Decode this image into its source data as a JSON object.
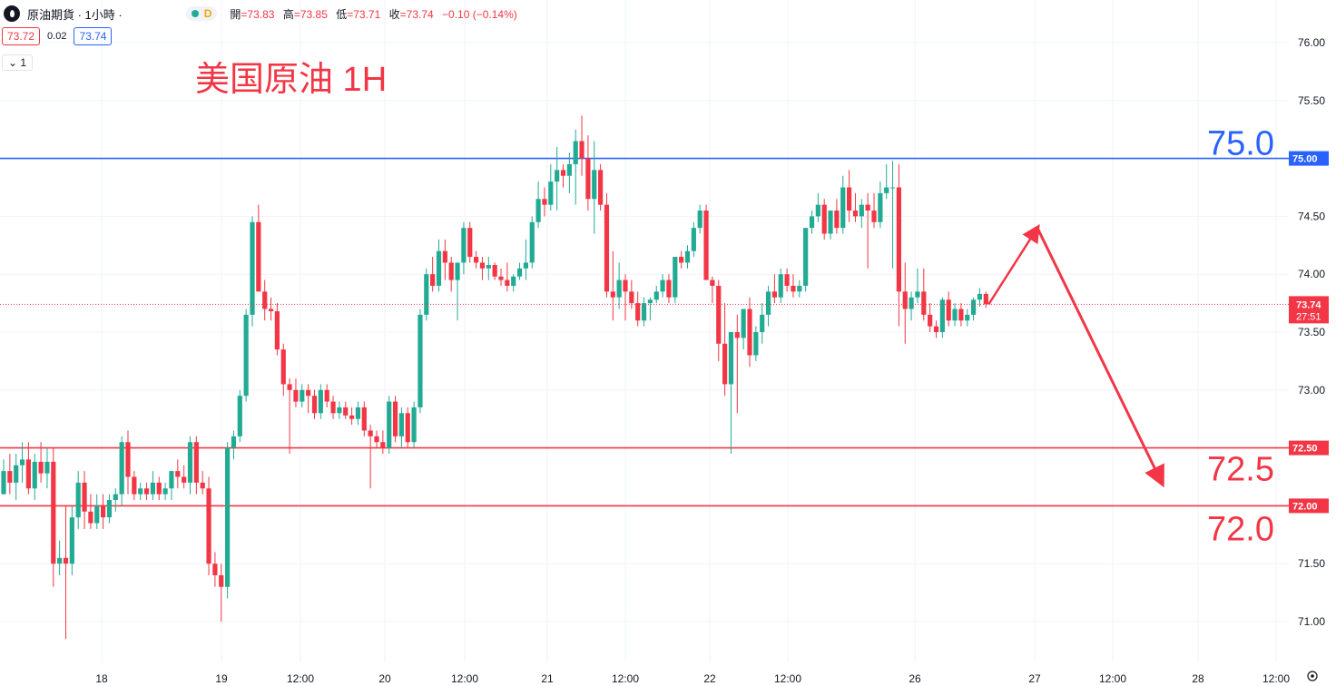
{
  "header": {
    "symbol": "原油期貨 · 1小時 ·",
    "badge": "D",
    "ohlc": [
      {
        "label": "開",
        "value": "=73.83"
      },
      {
        "label": "高",
        "value": "=73.85"
      },
      {
        "label": "低",
        "value": "=73.71"
      },
      {
        "label": "收",
        "value": "=73.74"
      },
      {
        "label": "",
        "value": "−0.10 (−0.14%)"
      }
    ],
    "sell_price": "73.72",
    "spread": "0.02",
    "buy_price": "73.74",
    "indicator_toggle": "1"
  },
  "colors": {
    "up": "#22ab94",
    "down": "#f23645",
    "blue_line": "#2962ff",
    "red_line": "#f23645",
    "annotation": "#f23645"
  },
  "chart_data": {
    "type": "candlestick",
    "title": "美国原油 1H",
    "ylim": [
      70.8,
      76.0
    ],
    "y_ticks": [
      "71.00",
      "71.50",
      "72.00",
      "72.50",
      "73.00",
      "73.50",
      "74.00",
      "74.50",
      "75.00",
      "75.50",
      "76.00"
    ],
    "x_ticks": [
      "18",
      "19",
      "12:00",
      "20",
      "12:00",
      "21",
      "12:00",
      "22",
      "12:00",
      "26",
      "27",
      "12:00",
      "28",
      "12:00"
    ],
    "current_price": {
      "value": 73.74,
      "label": "73.74",
      "countdown": "27:51"
    },
    "horizontal_lines": [
      {
        "price": 75.0,
        "axis_label": "75.00",
        "big_label": "75.0",
        "color": "#2962ff"
      },
      {
        "price": 72.5,
        "axis_label": "72.50",
        "big_label": "72.5",
        "color": "#f23645"
      },
      {
        "price": 72.0,
        "axis_label": "72.00",
        "big_label": "72.0",
        "color": "#f23645"
      }
    ],
    "projection": [
      {
        "x": "26 07:00",
        "y": 73.74
      },
      {
        "x": "27 00:00",
        "y": 74.4
      },
      {
        "x": "28 00:00",
        "y": 72.2
      }
    ],
    "candles": [
      [
        72.1,
        72.4,
        72.1,
        72.3
      ],
      [
        72.3,
        72.45,
        72.1,
        72.2
      ],
      [
        72.2,
        72.45,
        72.05,
        72.35
      ],
      [
        72.35,
        72.55,
        72.2,
        72.4
      ],
      [
        72.4,
        72.55,
        72.1,
        72.15
      ],
      [
        72.15,
        72.45,
        72.05,
        72.38
      ],
      [
        72.38,
        72.55,
        72.2,
        72.28
      ],
      [
        72.28,
        72.5,
        72.15,
        72.38
      ],
      [
        72.38,
        72.5,
        71.3,
        71.5
      ],
      [
        71.5,
        71.7,
        71.4,
        71.55
      ],
      [
        71.55,
        72.0,
        70.85,
        71.5
      ],
      [
        71.5,
        72.0,
        71.4,
        71.9
      ],
      [
        71.9,
        72.3,
        71.8,
        72.2
      ],
      [
        72.2,
        72.3,
        71.8,
        71.95
      ],
      [
        71.95,
        72.1,
        71.8,
        71.85
      ],
      [
        71.85,
        72.1,
        71.8,
        72.0
      ],
      [
        72.0,
        72.1,
        71.8,
        71.9
      ],
      [
        71.9,
        72.1,
        71.85,
        72.05
      ],
      [
        72.05,
        72.15,
        71.95,
        72.1
      ],
      [
        72.1,
        72.6,
        72.0,
        72.55
      ],
      [
        72.55,
        72.65,
        72.1,
        72.25
      ],
      [
        72.25,
        72.3,
        72.05,
        72.1
      ],
      [
        72.1,
        72.2,
        72.05,
        72.15
      ],
      [
        72.15,
        72.2,
        72.05,
        72.1
      ],
      [
        72.1,
        72.3,
        72.05,
        72.2
      ],
      [
        72.2,
        72.25,
        72.05,
        72.1
      ],
      [
        72.1,
        72.2,
        72.05,
        72.15
      ],
      [
        72.15,
        72.3,
        72.05,
        72.3
      ],
      [
        72.3,
        72.4,
        72.15,
        72.25
      ],
      [
        72.25,
        72.35,
        72.15,
        72.2
      ],
      [
        72.2,
        72.6,
        72.1,
        72.55
      ],
      [
        72.55,
        72.6,
        72.1,
        72.2
      ],
      [
        72.2,
        72.3,
        72.1,
        72.15
      ],
      [
        72.15,
        72.25,
        71.4,
        71.5
      ],
      [
        71.5,
        71.6,
        71.3,
        71.4
      ],
      [
        71.4,
        71.5,
        71.0,
        71.3
      ],
      [
        71.3,
        72.55,
        71.2,
        72.5
      ],
      [
        72.5,
        72.65,
        72.4,
        72.6
      ],
      [
        72.6,
        73.0,
        72.55,
        72.95
      ],
      [
        72.95,
        73.7,
        72.9,
        73.65
      ],
      [
        73.65,
        74.5,
        73.55,
        74.45
      ],
      [
        74.45,
        74.6,
        73.9,
        73.85
      ],
      [
        73.85,
        73.95,
        73.6,
        73.7
      ],
      [
        73.7,
        73.8,
        73.6,
        73.68
      ],
      [
        73.68,
        73.75,
        73.3,
        73.35
      ],
      [
        73.35,
        73.4,
        72.95,
        73.05
      ],
      [
        73.05,
        73.1,
        72.45,
        73.0
      ],
      [
        73.0,
        73.1,
        72.85,
        72.9
      ],
      [
        72.9,
        73.05,
        72.85,
        73.0
      ],
      [
        73.0,
        73.05,
        72.8,
        72.95
      ],
      [
        72.95,
        73.0,
        72.75,
        72.8
      ],
      [
        72.8,
        73.05,
        72.75,
        73.0
      ],
      [
        73.0,
        73.05,
        72.85,
        72.9
      ],
      [
        72.9,
        72.95,
        72.75,
        72.8
      ],
      [
        72.8,
        72.9,
        72.75,
        72.85
      ],
      [
        72.85,
        72.9,
        72.75,
        72.78
      ],
      [
        72.78,
        72.85,
        72.7,
        72.75
      ],
      [
        72.75,
        72.9,
        72.7,
        72.85
      ],
      [
        72.85,
        72.9,
        72.6,
        72.65
      ],
      [
        72.65,
        72.7,
        72.15,
        72.6
      ],
      [
        72.6,
        72.65,
        72.5,
        72.55
      ],
      [
        72.55,
        72.65,
        72.45,
        72.5
      ],
      [
        72.5,
        72.95,
        72.45,
        72.9
      ],
      [
        72.9,
        72.95,
        72.55,
        72.6
      ],
      [
        72.6,
        72.85,
        72.5,
        72.8
      ],
      [
        72.8,
        72.85,
        72.5,
        72.55
      ],
      [
        72.55,
        72.9,
        72.5,
        72.85
      ],
      [
        72.85,
        73.7,
        72.8,
        73.65
      ],
      [
        73.65,
        74.05,
        73.6,
        74.0
      ],
      [
        74.0,
        74.15,
        73.85,
        73.9
      ],
      [
        73.9,
        74.3,
        73.85,
        74.2
      ],
      [
        74.2,
        74.3,
        73.95,
        74.1
      ],
      [
        74.1,
        74.15,
        73.85,
        73.95
      ],
      [
        73.95,
        74.1,
        73.6,
        74.1
      ],
      [
        74.1,
        74.45,
        74.0,
        74.4
      ],
      [
        74.4,
        74.45,
        74.1,
        74.15
      ],
      [
        74.15,
        74.2,
        74.05,
        74.1
      ],
      [
        74.1,
        74.15,
        73.95,
        74.05
      ],
      [
        74.05,
        74.15,
        73.95,
        74.08
      ],
      [
        74.08,
        74.1,
        73.95,
        73.98
      ],
      [
        73.98,
        74.05,
        73.9,
        73.95
      ],
      [
        73.95,
        74.1,
        73.85,
        73.9
      ],
      [
        73.9,
        74.0,
        73.85,
        73.98
      ],
      [
        73.98,
        74.1,
        73.95,
        74.05
      ],
      [
        74.05,
        74.3,
        73.95,
        74.1
      ],
      [
        74.1,
        74.5,
        74.05,
        74.45
      ],
      [
        74.45,
        74.8,
        74.4,
        74.65
      ],
      [
        74.65,
        74.75,
        74.5,
        74.6
      ],
      [
        74.6,
        74.95,
        74.55,
        74.8
      ],
      [
        74.8,
        75.1,
        74.55,
        74.9
      ],
      [
        74.9,
        74.95,
        74.75,
        74.85
      ],
      [
        74.85,
        75.05,
        74.7,
        74.95
      ],
      [
        74.95,
        75.25,
        74.6,
        75.15
      ],
      [
        75.15,
        75.37,
        74.85,
        75.0
      ],
      [
        75.0,
        75.2,
        74.55,
        74.65
      ],
      [
        74.65,
        75.15,
        74.35,
        74.9
      ],
      [
        74.9,
        74.95,
        74.55,
        74.6
      ],
      [
        74.6,
        74.7,
        73.8,
        73.85
      ],
      [
        73.85,
        74.2,
        73.6,
        73.8
      ],
      [
        73.8,
        74.1,
        73.7,
        73.95
      ],
      [
        73.95,
        74.0,
        73.6,
        73.85
      ],
      [
        73.85,
        73.95,
        73.7,
        73.75
      ],
      [
        73.75,
        73.85,
        73.55,
        73.6
      ],
      [
        73.6,
        73.8,
        73.55,
        73.75
      ],
      [
        73.75,
        73.8,
        73.6,
        73.78
      ],
      [
        73.78,
        73.9,
        73.75,
        73.85
      ],
      [
        73.85,
        74.0,
        73.8,
        73.95
      ],
      [
        73.95,
        74.0,
        73.75,
        73.8
      ],
      [
        73.8,
        74.15,
        73.75,
        74.15
      ],
      [
        74.15,
        74.2,
        74.05,
        74.1
      ],
      [
        74.1,
        74.25,
        74.05,
        74.2
      ],
      [
        74.2,
        74.45,
        74.15,
        74.4
      ],
      [
        74.4,
        74.6,
        74.35,
        74.55
      ],
      [
        74.55,
        74.6,
        73.95,
        73.95
      ],
      [
        73.95,
        73.98,
        73.75,
        73.9
      ],
      [
        73.9,
        73.95,
        73.25,
        73.4
      ],
      [
        73.4,
        73.75,
        72.95,
        73.05
      ],
      [
        73.05,
        73.45,
        72.45,
        73.5
      ],
      [
        73.5,
        73.65,
        72.8,
        73.45
      ],
      [
        73.45,
        73.7,
        73.35,
        73.7
      ],
      [
        73.7,
        73.8,
        73.2,
        73.3
      ],
      [
        73.3,
        73.55,
        73.25,
        73.5
      ],
      [
        73.5,
        73.75,
        73.4,
        73.65
      ],
      [
        73.65,
        73.9,
        73.55,
        73.85
      ],
      [
        73.85,
        74.0,
        73.75,
        73.8
      ],
      [
        73.8,
        74.05,
        73.75,
        74.0
      ],
      [
        74.0,
        74.05,
        73.85,
        73.9
      ],
      [
        73.9,
        74.0,
        73.8,
        73.85
      ],
      [
        73.85,
        73.95,
        73.8,
        73.9
      ],
      [
        73.9,
        74.4,
        73.85,
        74.4
      ],
      [
        74.4,
        74.55,
        74.35,
        74.5
      ],
      [
        74.5,
        74.7,
        74.45,
        74.6
      ],
      [
        74.6,
        74.65,
        74.3,
        74.35
      ],
      [
        74.35,
        74.55,
        74.3,
        74.55
      ],
      [
        74.55,
        74.65,
        74.35,
        74.4
      ],
      [
        74.4,
        74.85,
        74.35,
        74.75
      ],
      [
        74.75,
        74.9,
        74.45,
        74.55
      ],
      [
        74.55,
        74.7,
        74.45,
        74.5
      ],
      [
        74.5,
        74.65,
        74.4,
        74.6
      ],
      [
        74.6,
        74.7,
        74.05,
        74.55
      ],
      [
        74.55,
        74.7,
        74.4,
        74.45
      ],
      [
        74.45,
        74.8,
        74.4,
        74.7
      ],
      [
        74.7,
        74.95,
        74.65,
        74.75
      ],
      [
        74.75,
        74.98,
        74.05,
        74.75
      ],
      [
        74.75,
        74.95,
        73.55,
        73.85
      ],
      [
        73.85,
        74.1,
        73.4,
        73.7
      ],
      [
        73.7,
        73.85,
        73.6,
        73.8
      ],
      [
        73.8,
        74.05,
        73.75,
        73.85
      ],
      [
        73.85,
        74.05,
        73.6,
        73.65
      ],
      [
        73.65,
        73.75,
        73.5,
        73.55
      ],
      [
        73.55,
        73.6,
        73.45,
        73.5
      ],
      [
        73.5,
        73.8,
        73.45,
        73.78
      ],
      [
        73.78,
        73.85,
        73.55,
        73.6
      ],
      [
        73.6,
        73.75,
        73.55,
        73.7
      ],
      [
        73.7,
        73.75,
        73.55,
        73.6
      ],
      [
        73.6,
        73.7,
        73.55,
        73.65
      ],
      [
        73.65,
        73.8,
        73.6,
        73.78
      ],
      [
        73.78,
        73.88,
        73.72,
        73.83
      ],
      [
        73.83,
        73.85,
        73.71,
        73.74
      ]
    ]
  }
}
